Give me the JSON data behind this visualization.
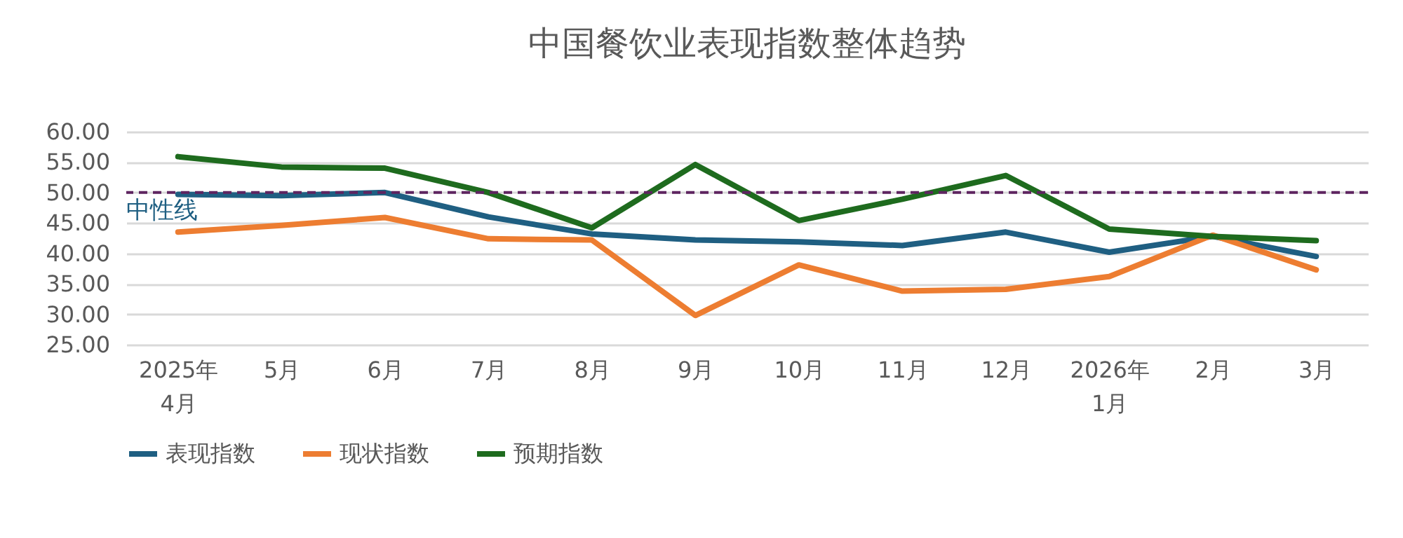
{
  "chart_data": {
    "type": "line",
    "title": "中国餐饮业表现指数整体趋势",
    "categories": [
      "2025年\n4月",
      "5月",
      "6月",
      "7月",
      "8月",
      "9月",
      "10月",
      "11月",
      "12月",
      "2026年\n1月",
      "2月",
      "3月"
    ],
    "series": [
      {
        "name": "表现指数",
        "color": "#1f5f82",
        "values": [
          49.7,
          49.5,
          50.0,
          46.0,
          43.2,
          42.2,
          41.9,
          41.3,
          43.5,
          40.2,
          42.8,
          39.5
        ]
      },
      {
        "name": "现状指数",
        "color": "#ed7d31",
        "values": [
          43.5,
          44.6,
          45.9,
          42.4,
          42.2,
          29.8,
          38.1,
          33.8,
          34.1,
          36.2,
          43.0,
          37.3
        ]
      },
      {
        "name": "预期指数",
        "color": "#1e6b1e",
        "values": [
          55.9,
          54.2,
          54.0,
          50.0,
          44.2,
          54.6,
          45.4,
          48.9,
          52.8,
          44.0,
          42.8,
          42.1
        ]
      }
    ],
    "ylim": [
      25,
      60
    ],
    "yticks": [
      {
        "value": 25,
        "label": "25.00"
      },
      {
        "value": 30,
        "label": "30.00"
      },
      {
        "value": 35,
        "label": "35.00"
      },
      {
        "value": 40,
        "label": "40.00"
      },
      {
        "value": 45,
        "label": "45.00"
      },
      {
        "value": 50,
        "label": "50.00"
      },
      {
        "value": 55,
        "label": "55.00"
      },
      {
        "value": 60,
        "label": "60.00"
      }
    ],
    "ref_lines": [
      {
        "axis": "y",
        "value": 50,
        "label": "中性线",
        "color": "#5e2460",
        "line_style": "dashed"
      }
    ],
    "grid": "y",
    "legend": "bottom",
    "marker": "none",
    "line_style": "solid"
  }
}
